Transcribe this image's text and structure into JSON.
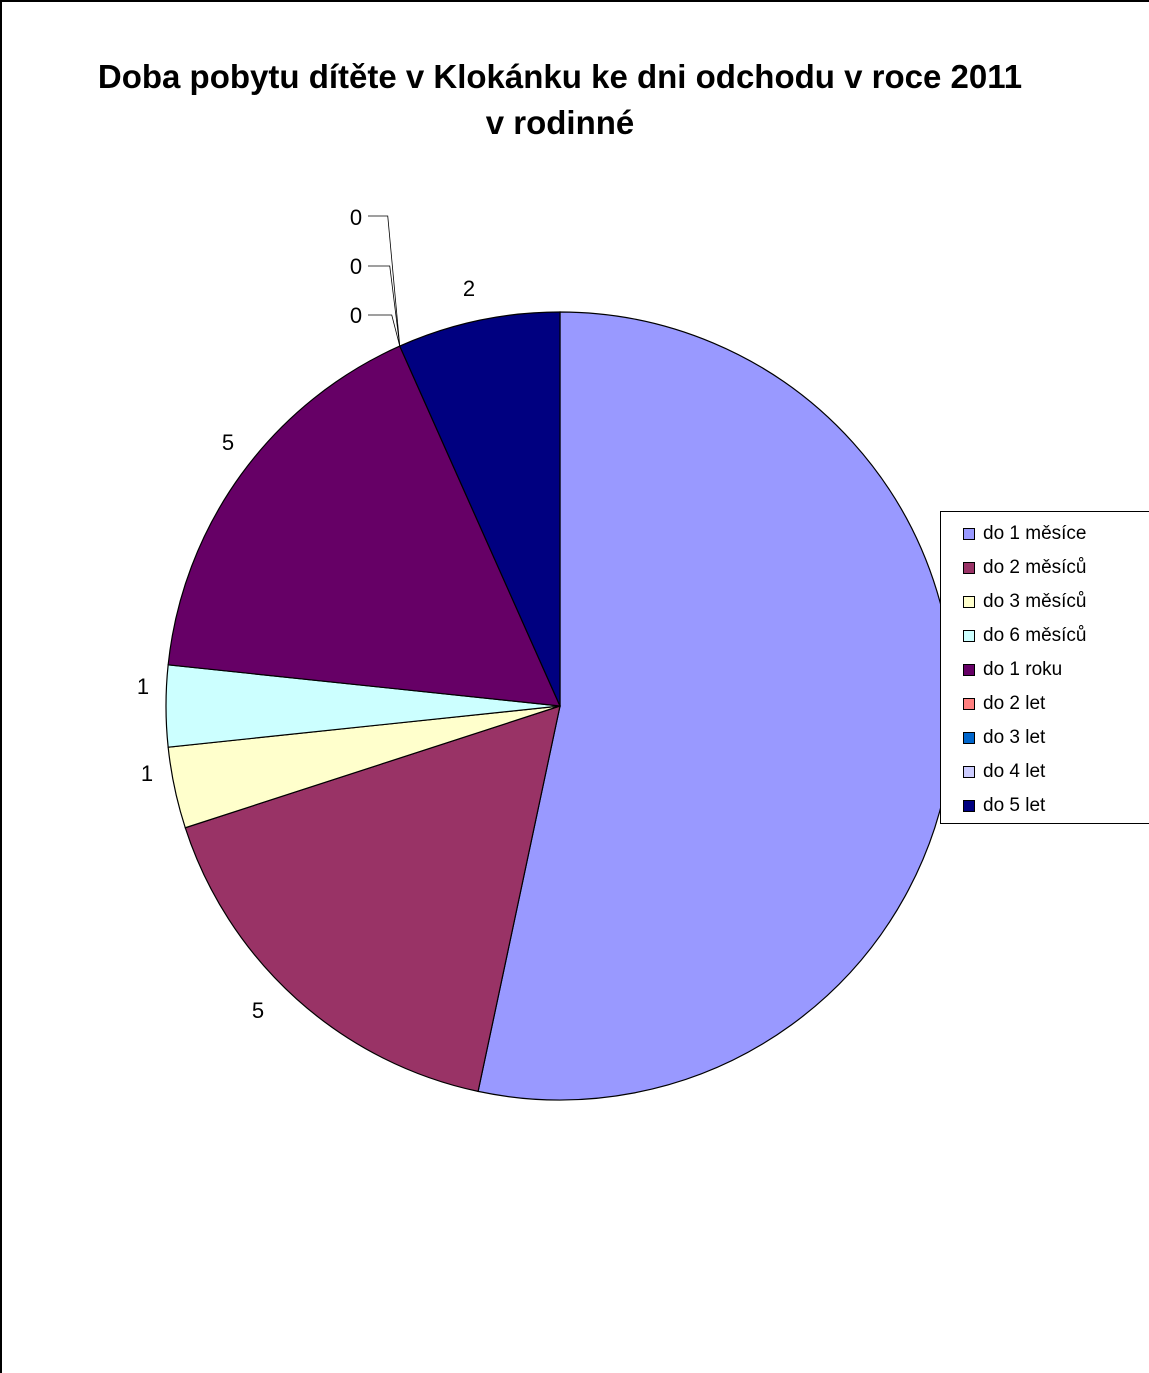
{
  "chart_data": {
    "type": "pie",
    "title": "Doba pobytu dítěte v Klokánku ke dni odchodu v roce 2011 v rodinné",
    "categories": [
      "do 1 měsíce",
      "do 2 měsíců",
      "do 3 měsíců",
      "do 6 měsíců",
      "do 1 roku",
      "do 2 let",
      "do 3 let",
      "do 4 let",
      "do 5 let"
    ],
    "values": [
      16,
      5,
      1,
      1,
      5,
      0,
      0,
      0,
      2
    ],
    "data_labels": [
      "",
      "5",
      "1",
      "1",
      "5",
      "0",
      "0",
      "0",
      "2"
    ],
    "colors": [
      "#9999ff",
      "#993366",
      "#ffffcc",
      "#ccffff",
      "#660066",
      "#ff8080",
      "#0066cc",
      "#ccccff",
      "#000080"
    ],
    "legend_position": "right"
  }
}
